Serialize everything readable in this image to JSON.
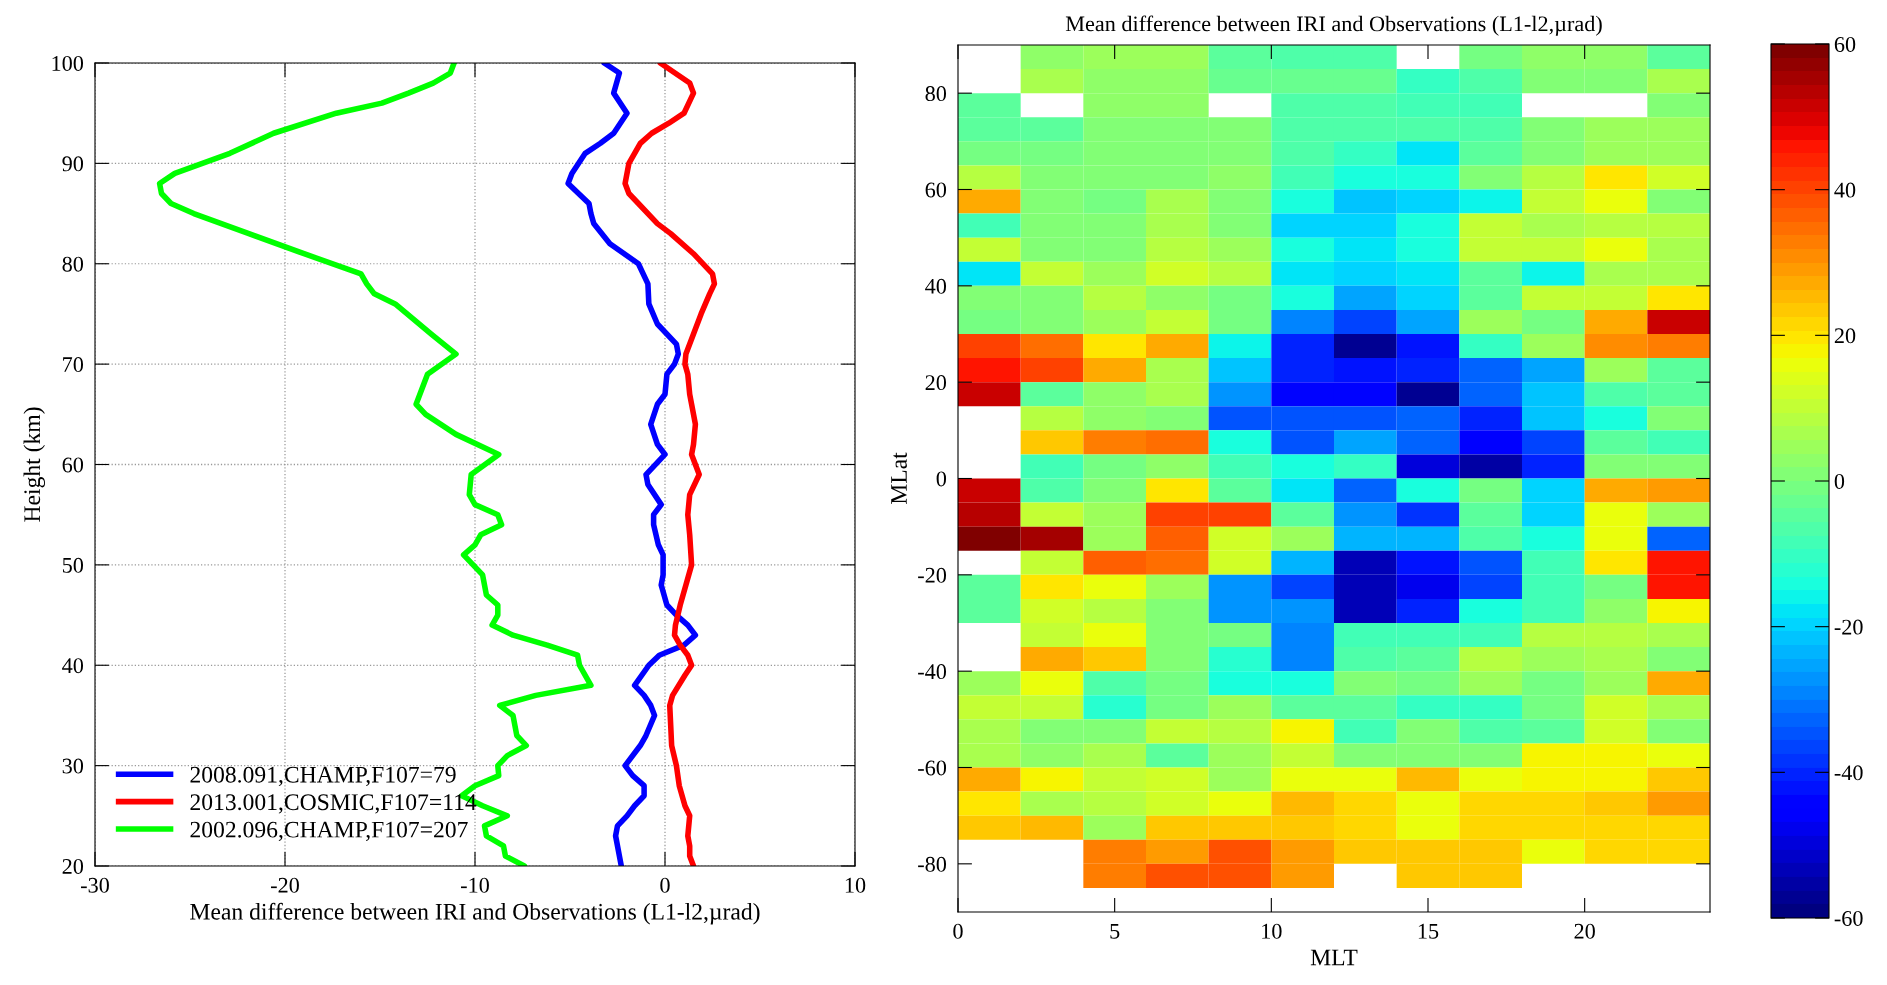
{
  "chart_data": [
    {
      "type": "line",
      "xlabel": "Mean difference between IRI and Observations (L1-l2,µrad)",
      "ylabel": "Height (km)",
      "xlim": [
        -30,
        10
      ],
      "xticks": [
        -30,
        -20,
        -10,
        0,
        10
      ],
      "ylim": [
        20,
        100
      ],
      "yticks": [
        20,
        30,
        40,
        50,
        60,
        70,
        80,
        90,
        100
      ],
      "grid": true,
      "legend": "bottom left",
      "line_style": "solid",
      "marker": "none",
      "series": [
        {
          "name": "2008.091,CHAMP,F107=79",
          "color": "#0000ff",
          "x": [
            -3.2,
            -2.4,
            -2.7,
            -2.0,
            -2.7,
            -3.4,
            -4.2,
            -4.9,
            -5.1,
            -4.0,
            -3.9,
            -3.75,
            -2.9,
            -1.4,
            -0.9,
            -0.85,
            -0.4,
            0.6,
            0.7,
            0.5,
            0.1,
            0.0,
            -0.4,
            -0.75,
            -0.4,
            0.0,
            -1.0,
            -0.9,
            -0.2,
            -0.6,
            -0.6,
            -0.35,
            -0.1,
            -0.1,
            -0.2,
            0.1,
            0.6,
            1.2,
            1.6,
            1.0,
            -0.3,
            -0.85,
            -1.6,
            -1.1,
            -0.75,
            -0.55,
            -1.0,
            -1.3,
            -2.1,
            -1.7,
            -1.1,
            -1.1,
            -1.6,
            -2.0,
            -2.5,
            -2.6,
            -2.4,
            -2.3
          ],
          "values": [
            100,
            99,
            97,
            95,
            93,
            92,
            91,
            89,
            88,
            86,
            85,
            84,
            82,
            80,
            78,
            76,
            74,
            72,
            71,
            70,
            69,
            67,
            66,
            64,
            62,
            61,
            59,
            58,
            56,
            55,
            54,
            52,
            51,
            49,
            48,
            46,
            45,
            44,
            43,
            42,
            41,
            40,
            38,
            37,
            36,
            35,
            33,
            32,
            30,
            29,
            28,
            27,
            26,
            25,
            24,
            23,
            21,
            20
          ]
        },
        {
          "name": "2013.001,COSMIC,F107=114",
          "color": "#ff0000",
          "x": [
            -0.25,
            1.3,
            1.5,
            1.0,
            0.2,
            -0.7,
            -1.3,
            -1.9,
            -2.1,
            -1.9,
            -1.4,
            -0.4,
            0.3,
            1.5,
            2.5,
            2.6,
            2.35,
            1.9,
            1.5,
            1.3,
            1.1,
            1.05,
            1.2,
            1.3,
            1.4,
            1.6,
            1.5,
            1.4,
            1.8,
            1.3,
            1.2,
            1.3,
            1.4,
            1.1,
            0.8,
            0.55,
            0.5,
            0.8,
            1.2,
            1.4,
            1.05,
            0.4,
            0.25,
            0.3,
            0.35,
            0.6,
            0.75,
            1.05,
            1.3,
            1.2,
            1.3,
            1.3,
            1.5
          ],
          "values": [
            100,
            98,
            97,
            95,
            94,
            93,
            92,
            90,
            88,
            87,
            86,
            84,
            83,
            81,
            79,
            78,
            77,
            75,
            73,
            72,
            71,
            70,
            69,
            67,
            66,
            64,
            62,
            61,
            59,
            57,
            55,
            53,
            50,
            48,
            46,
            44,
            43,
            42,
            41,
            40,
            39,
            37,
            36,
            34,
            32,
            30,
            28,
            26,
            25,
            23,
            22,
            21,
            20
          ]
        },
        {
          "name": "2002.096,CHAMP,F107=207",
          "color": "#00ff00",
          "x": [
            -11.1,
            -11.3,
            -12.2,
            -13.5,
            -14.9,
            -17.3,
            -20.6,
            -22.9,
            -25.8,
            -26.6,
            -26.5,
            -26.0,
            -24.8,
            -21.9,
            -19.0,
            -16.0,
            -15.7,
            -15.3,
            -14.2,
            -12.3,
            -11.0,
            -12.5,
            -13.1,
            -12.6,
            -11.0,
            -8.75,
            -10.2,
            -10.3,
            -10.0,
            -8.8,
            -8.6,
            -9.7,
            -10.0,
            -10.6,
            -9.6,
            -9.4,
            -8.8,
            -8.8,
            -9.1,
            -8.0,
            -6.2,
            -4.6,
            -4.5,
            -3.9,
            -6.8,
            -8.7,
            -8.0,
            -7.8,
            -7.3,
            -8.3,
            -8.8,
            -8.75,
            -10.0,
            -10.7,
            -9.6,
            -8.3,
            -9.5,
            -9.4,
            -8.5,
            -8.4,
            -7.4
          ],
          "values": [
            100,
            99,
            98,
            97,
            96,
            95,
            93,
            91,
            89,
            88,
            87,
            86,
            85,
            83,
            81,
            79,
            78,
            77,
            76,
            73,
            71,
            69,
            66,
            65,
            63,
            61,
            59,
            57,
            56,
            55,
            54,
            53,
            52,
            51,
            49,
            47,
            46,
            45,
            44,
            43,
            42,
            41,
            40,
            38,
            37,
            36,
            35,
            33,
            32,
            31,
            30,
            29,
            28,
            27,
            26,
            25,
            24,
            23,
            22,
            21,
            20
          ]
        }
      ]
    },
    {
      "type": "heatmap",
      "title": "Mean difference between IRI and Observations (L1-l2,µrad)",
      "xlabel": "MLT",
      "ylabel": "MLat",
      "xlim": [
        0,
        24
      ],
      "xticks": [
        0,
        5,
        10,
        15,
        20
      ],
      "ylim": [
        -90,
        90
      ],
      "yticks": [
        -80,
        -60,
        -40,
        -20,
        0,
        20,
        40,
        60,
        80
      ],
      "clim": [
        -60,
        60
      ],
      "cticks": [
        -60,
        -40,
        -20,
        0,
        20,
        40,
        60
      ],
      "grid": false,
      "x": [
        1,
        3,
        5,
        7,
        9,
        11,
        13,
        15,
        17,
        19,
        21,
        23
      ],
      "y": [
        87.5,
        82.5,
        77.5,
        72.5,
        67.5,
        62.5,
        57.5,
        52.5,
        47.5,
        42.5,
        37.5,
        32.5,
        27.5,
        22.5,
        17.5,
        12.5,
        7.5,
        2.5,
        -2.5,
        -7.5,
        -12.5,
        -17.5,
        -22.5,
        -27.5,
        -32.5,
        -37.5,
        -42.5,
        -47.5,
        -52.5,
        -57.5,
        -62.5,
        -67.5,
        -72.5,
        -77.5,
        -82.5
      ],
      "cells": [
        [
          null,
          2,
          4,
          4,
          -5,
          -7,
          -7,
          null,
          -1,
          2,
          2,
          -5
        ],
        [
          null,
          7,
          3,
          3,
          -2,
          -3,
          -3,
          -10,
          -6,
          0,
          0,
          6
        ],
        [
          -5,
          null,
          3,
          3,
          null,
          -7,
          -7,
          -9,
          -9,
          null,
          null,
          0
        ],
        [
          -5,
          -4,
          1,
          1,
          1,
          -7,
          -6,
          -7,
          -7,
          1,
          5,
          5
        ],
        [
          -1,
          -1,
          1,
          1,
          0,
          -7,
          -11,
          -17,
          -5,
          0,
          5,
          5
        ],
        [
          8,
          1,
          1,
          1,
          3,
          -9,
          -15,
          -15,
          1,
          9,
          19,
          12
        ],
        [
          27,
          0,
          -1,
          7,
          1,
          -15,
          -22,
          -19,
          -16,
          11,
          16,
          1
        ],
        [
          -9,
          0,
          0,
          7,
          1,
          -19,
          -19,
          -14,
          11,
          6,
          8,
          8
        ],
        [
          11,
          0,
          0,
          9,
          5,
          -15,
          -18,
          -14,
          11,
          11,
          15,
          7
        ],
        [
          -18,
          11,
          5,
          13,
          8,
          -18,
          -20,
          -18,
          -5,
          -16,
          7,
          7
        ],
        [
          1,
          1,
          8,
          3,
          -1,
          -15,
          -26,
          -20,
          -5,
          11,
          11,
          20
        ],
        [
          -1,
          1,
          5,
          11,
          -1,
          -30,
          -37,
          -26,
          5,
          -1,
          27,
          52
        ],
        [
          40,
          35,
          20,
          28,
          -16,
          -40,
          -57,
          -42,
          -11,
          5,
          30,
          33
        ],
        [
          45,
          40,
          27,
          7,
          -21,
          -41,
          -43,
          -40,
          -32,
          -25,
          5,
          -5
        ],
        [
          52,
          -5,
          3,
          7,
          -28,
          -45,
          -45,
          -58,
          -32,
          -22,
          -7,
          -5
        ],
        [
          null,
          8,
          3,
          0,
          -34,
          -34,
          -35,
          -32,
          -41,
          -21,
          -15,
          1
        ],
        [
          null,
          24,
          33,
          35,
          -15,
          -34,
          -26,
          -32,
          -46,
          -37,
          -5,
          -9
        ],
        [
          null,
          -9,
          -1,
          3,
          -9,
          -15,
          -11,
          -50,
          -55,
          -40,
          1,
          1
        ],
        [
          52,
          -7,
          1,
          19,
          -5,
          -17,
          -33,
          -15,
          -1,
          -20,
          28,
          29
        ],
        [
          54,
          10,
          5,
          41,
          41,
          -4,
          -28,
          -38,
          -4,
          -20,
          15,
          5
        ],
        [
          59,
          55,
          5,
          36,
          12,
          5,
          -24,
          -24,
          -7,
          -15,
          15,
          -33
        ],
        [
          null,
          10,
          36,
          35,
          12,
          -24,
          -53,
          -43,
          -34,
          -9,
          20,
          45
        ],
        [
          -4,
          20,
          15,
          5,
          -28,
          -37,
          -53,
          -48,
          -37,
          -9,
          -1,
          45
        ],
        [
          -4,
          12,
          9,
          0,
          -28,
          -28,
          -53,
          -40,
          -15,
          -9,
          3,
          17
        ],
        [
          null,
          10,
          15,
          1,
          -1,
          -30,
          -9,
          -9,
          -9,
          8,
          9,
          7
        ],
        [
          null,
          28,
          24,
          1,
          -13,
          -30,
          -7,
          -4,
          8,
          5,
          7,
          1
        ],
        [
          5,
          15,
          -7,
          -1,
          -15,
          -15,
          0,
          -1,
          5,
          -1,
          5,
          28
        ],
        [
          10,
          10,
          -13,
          -1,
          5,
          -5,
          -5,
          -11,
          -11,
          -1,
          12,
          7
        ],
        [
          6,
          1,
          1,
          11,
          8,
          18,
          -9,
          1,
          -7,
          -5,
          12,
          1
        ],
        [
          6,
          3,
          7,
          -5,
          5,
          11,
          1,
          1,
          1,
          18,
          18,
          15
        ],
        [
          28,
          18,
          10,
          13,
          5,
          15,
          15,
          25,
          16,
          18,
          18,
          24
        ],
        [
          19,
          7,
          8,
          12,
          15,
          25,
          22,
          15,
          21,
          22,
          24,
          29
        ],
        [
          24,
          25,
          5,
          23,
          24,
          24,
          22,
          15,
          21,
          21,
          22,
          22
        ],
        [
          null,
          null,
          33,
          29,
          38,
          29,
          24,
          24,
          24,
          15,
          22,
          22
        ],
        [
          null,
          null,
          33,
          38,
          38,
          29,
          null,
          24,
          24,
          null,
          null,
          null
        ]
      ]
    }
  ]
}
